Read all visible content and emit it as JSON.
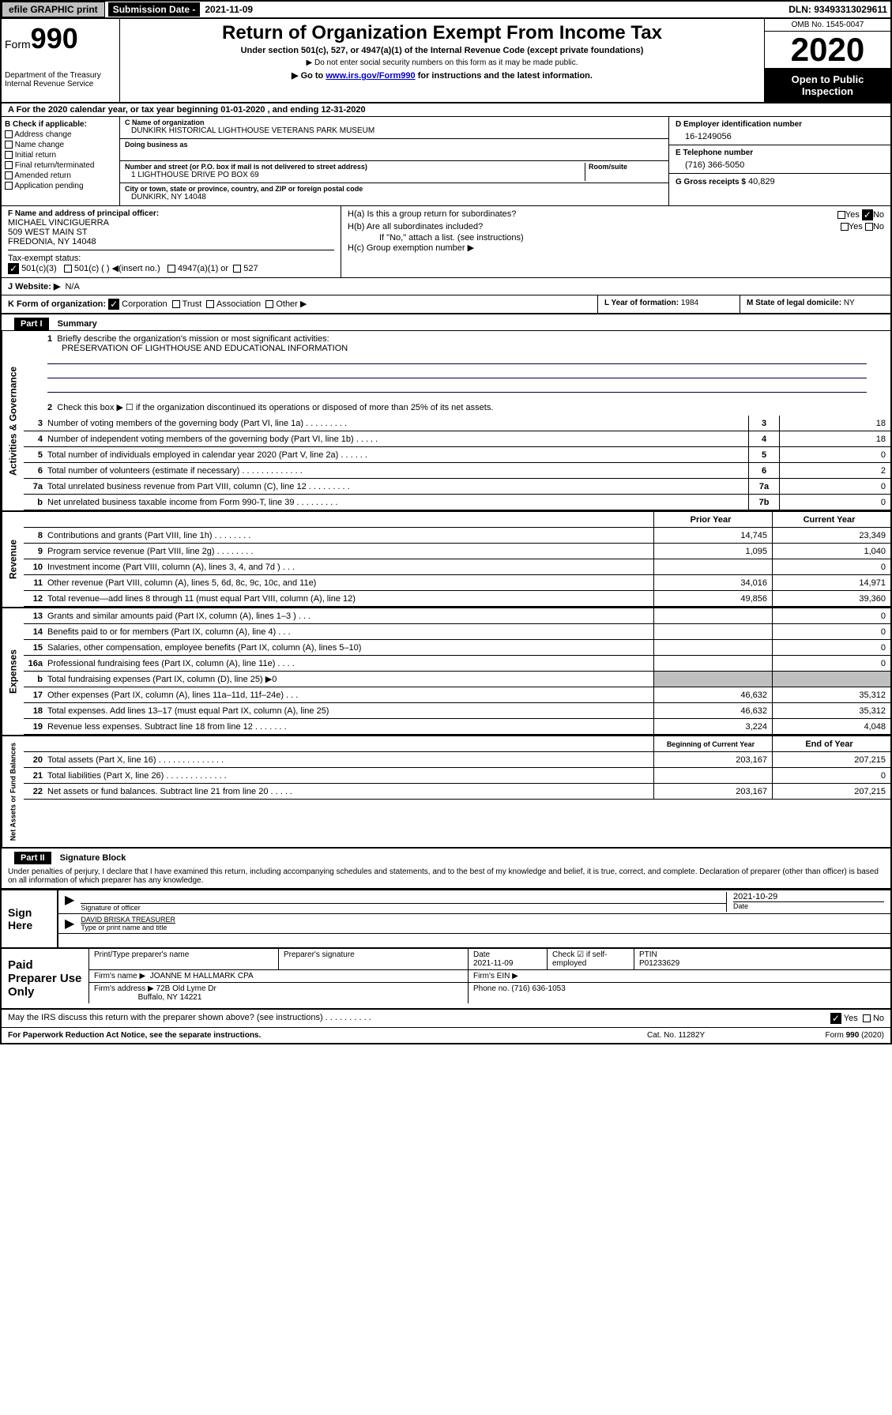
{
  "topbar": {
    "efile": "efile GRAPHIC print",
    "subdate_label": "Submission Date - ",
    "subdate": "2021-11-09",
    "dln": "DLN: 93493313029611"
  },
  "header": {
    "form_label": "Form",
    "form_num": "990",
    "dept": "Department of the Treasury\nInternal Revenue Service",
    "title": "Return of Organization Exempt From Income Tax",
    "subtitle": "Under section 501(c), 527, or 4947(a)(1) of the Internal Revenue Code (except private foundations)",
    "note1": "▶ Do not enter social security numbers on this form as it may be made public.",
    "note2_pre": "▶ Go to ",
    "note2_link": "www.irs.gov/Form990",
    "note2_post": " for instructions and the latest information.",
    "omb": "OMB No. 1545-0047",
    "year": "2020",
    "open": "Open to Public Inspection"
  },
  "line_a": "For the 2020 calendar year, or tax year beginning 01-01-2020   , and ending 12-31-2020",
  "box_b": {
    "label": "B Check if applicable:",
    "opts": [
      "Address change",
      "Name change",
      "Initial return",
      "Final return/terminated",
      "Amended return",
      "Application pending"
    ]
  },
  "box_c": {
    "name_label": "C Name of organization",
    "name": "DUNKIRK HISTORICAL LIGHTHOUSE VETERANS PARK MUSEUM",
    "dba_label": "Doing business as",
    "addr_label": "Number and street (or P.O. box if mail is not delivered to street address)",
    "room_label": "Room/suite",
    "addr": "1 LIGHTHOUSE DRIVE PO BOX 69",
    "city_label": "City or town, state or province, country, and ZIP or foreign postal code",
    "city": "DUNKIRK, NY  14048"
  },
  "box_d": {
    "ein_label": "D Employer identification number",
    "ein": "16-1249056",
    "tel_label": "E Telephone number",
    "tel": "(716) 366-5050",
    "gross_label": "G Gross receipts $",
    "gross": "40,829"
  },
  "box_f": {
    "label": "F  Name and address of principal officer:",
    "name": "MICHAEL VINCIGUERRA",
    "addr1": "509 WEST MAIN ST",
    "addr2": "FREDONIA, NY  14048"
  },
  "box_h": {
    "ha": "H(a)  Is this a group return for subordinates?",
    "hb": "H(b)  Are all subordinates included?",
    "hb_note": "If \"No,\" attach a list. (see instructions)",
    "hc": "H(c)  Group exemption number ▶"
  },
  "tax_status": {
    "label": "Tax-exempt status:",
    "opt1": "501(c)(3)",
    "opt2": "501(c) (  ) ◀(insert no.)",
    "opt3": "4947(a)(1) or",
    "opt4": "527"
  },
  "website": {
    "label": "J   Website: ▶",
    "val": "N/A"
  },
  "line_k": "K Form of organization:",
  "k_opts": [
    "Corporation",
    "Trust",
    "Association",
    "Other ▶"
  ],
  "line_l": {
    "label": "L Year of formation:",
    "val": "1984"
  },
  "line_m": {
    "label": "M State of legal domicile:",
    "val": "NY"
  },
  "part1": {
    "header": "Part I",
    "title": "Summary"
  },
  "governance": {
    "tab": "Activities & Governance",
    "q1": "Briefly describe the organization's mission or most significant activities:",
    "mission": "PRESERVATION OF LIGHTHOUSE AND EDUCATIONAL INFORMATION",
    "q2": "Check this box ▶ ☐ if the organization discontinued its operations or disposed of more than 25% of its net assets.",
    "rows": [
      {
        "n": "3",
        "t": "Number of voting members of the governing body (Part VI, line 1a)   .   .   .   .   .   .   .   .   .",
        "a": "3",
        "v": "18"
      },
      {
        "n": "4",
        "t": "Number of independent voting members of the governing body (Part VI, line 1b)   .   .   .   .   .",
        "a": "4",
        "v": "18"
      },
      {
        "n": "5",
        "t": "Total number of individuals employed in calendar year 2020 (Part V, line 2a)   .   .   .   .   .   .",
        "a": "5",
        "v": "0"
      },
      {
        "n": "6",
        "t": "Total number of volunteers (estimate if necessary)   .   .   .   .   .   .   .   .   .   .   .   .   .",
        "a": "6",
        "v": "2"
      },
      {
        "n": "7a",
        "t": "Total unrelated business revenue from Part VIII, column (C), line 12   .   .   .   .   .   .   .   .   .",
        "a": "7a",
        "v": "0"
      },
      {
        "n": "b",
        "t": "Net unrelated business taxable income from Form 990-T, line 39   .   .   .   .   .   .   .   .   .",
        "a": "7b",
        "v": "0"
      }
    ]
  },
  "revenue": {
    "tab": "Revenue",
    "header_prior": "Prior Year",
    "header_current": "Current Year",
    "rows": [
      {
        "n": "8",
        "t": "Contributions and grants (Part VIII, line 1h)   .   .   .   .   .   .   .   .",
        "p": "14,745",
        "c": "23,349"
      },
      {
        "n": "9",
        "t": "Program service revenue (Part VIII, line 2g)   .   .   .   .   .   .   .   .",
        "p": "1,095",
        "c": "1,040"
      },
      {
        "n": "10",
        "t": "Investment income (Part VIII, column (A), lines 3, 4, and 7d )   .   .   .",
        "p": "",
        "c": "0"
      },
      {
        "n": "11",
        "t": "Other revenue (Part VIII, column (A), lines 5, 6d, 8c, 9c, 10c, and 11e)",
        "p": "34,016",
        "c": "14,971"
      },
      {
        "n": "12",
        "t": "Total revenue—add lines 8 through 11 (must equal Part VIII, column (A), line 12)",
        "p": "49,856",
        "c": "39,360"
      }
    ]
  },
  "expenses": {
    "tab": "Expenses",
    "rows": [
      {
        "n": "13",
        "t": "Grants and similar amounts paid (Part IX, column (A), lines 1–3 )   .   .   .",
        "p": "",
        "c": "0"
      },
      {
        "n": "14",
        "t": "Benefits paid to or for members (Part IX, column (A), line 4)   .   .   .",
        "p": "",
        "c": "0"
      },
      {
        "n": "15",
        "t": "Salaries, other compensation, employee benefits (Part IX, column (A), lines 5–10)",
        "p": "",
        "c": "0"
      },
      {
        "n": "16a",
        "t": "Professional fundraising fees (Part IX, column (A), line 11e)   .   .   .   .",
        "p": "",
        "c": "0"
      },
      {
        "n": "b",
        "t": "Total fundraising expenses (Part IX, column (D), line 25) ▶0",
        "shaded": true,
        "p": "",
        "c": ""
      },
      {
        "n": "17",
        "t": "Other expenses (Part IX, column (A), lines 11a–11d, 11f–24e)   .   .   .",
        "p": "46,632",
        "c": "35,312"
      },
      {
        "n": "18",
        "t": "Total expenses. Add lines 13–17 (must equal Part IX, column (A), line 25)",
        "p": "46,632",
        "c": "35,312"
      },
      {
        "n": "19",
        "t": "Revenue less expenses. Subtract line 18 from line 12   .   .   .   .   .   .   .",
        "p": "3,224",
        "c": "4,048"
      }
    ]
  },
  "netassets": {
    "tab": "Net Assets or Fund Balances",
    "header_begin": "Beginning of Current Year",
    "header_end": "End of Year",
    "rows": [
      {
        "n": "20",
        "t": "Total assets (Part X, line 16)   .   .   .   .   .   .   .   .   .   .   .   .   .   .",
        "p": "203,167",
        "c": "207,215"
      },
      {
        "n": "21",
        "t": "Total liabilities (Part X, line 26)   .   .   .   .   .   .   .   .   .   .   .   .   .",
        "p": "",
        "c": "0"
      },
      {
        "n": "22",
        "t": "Net assets or fund balances. Subtract line 21 from line 20   .   .   .   .   .",
        "p": "203,167",
        "c": "207,215"
      }
    ]
  },
  "part2": {
    "header": "Part II",
    "title": "Signature Block"
  },
  "declaration": "Under penalties of perjury, I declare that I have examined this return, including accompanying schedules and statements, and to the best of my knowledge and belief, it is true, correct, and complete. Declaration of preparer (other than officer) is based on all information of which preparer has any knowledge.",
  "sign": {
    "label": "Sign Here",
    "sig_label": "Signature of officer",
    "date": "2021-10-29",
    "date_label": "Date",
    "name": "DAVID BRISKA  TREASURER",
    "name_label": "Type or print name and title"
  },
  "preparer": {
    "label": "Paid Preparer Use Only",
    "h1": "Print/Type preparer's name",
    "h2": "Preparer's signature",
    "h3_label": "Date",
    "h3": "2021-11-09",
    "h4": "Check ☑ if self-employed",
    "h5_label": "PTIN",
    "h5": "P01233629",
    "firm_label": "Firm's name    ▶",
    "firm": "JOANNE M HALLMARK CPA",
    "ein_label": "Firm's EIN ▶",
    "addr_label": "Firm's address ▶",
    "addr1": "72B Old Lyme Dr",
    "addr2": "Buffalo, NY  14221",
    "phone_label": "Phone no.",
    "phone": "(716) 636-1053"
  },
  "discuss": "May the IRS discuss this return with the preparer shown above? (see instructions)   .   .   .   .   .   .   .   .   .   .",
  "footer": {
    "left": "For Paperwork Reduction Act Notice, see the separate instructions.",
    "mid": "Cat. No. 11282Y",
    "right": "Form 990 (2020)"
  },
  "yes": "Yes",
  "no": "No"
}
